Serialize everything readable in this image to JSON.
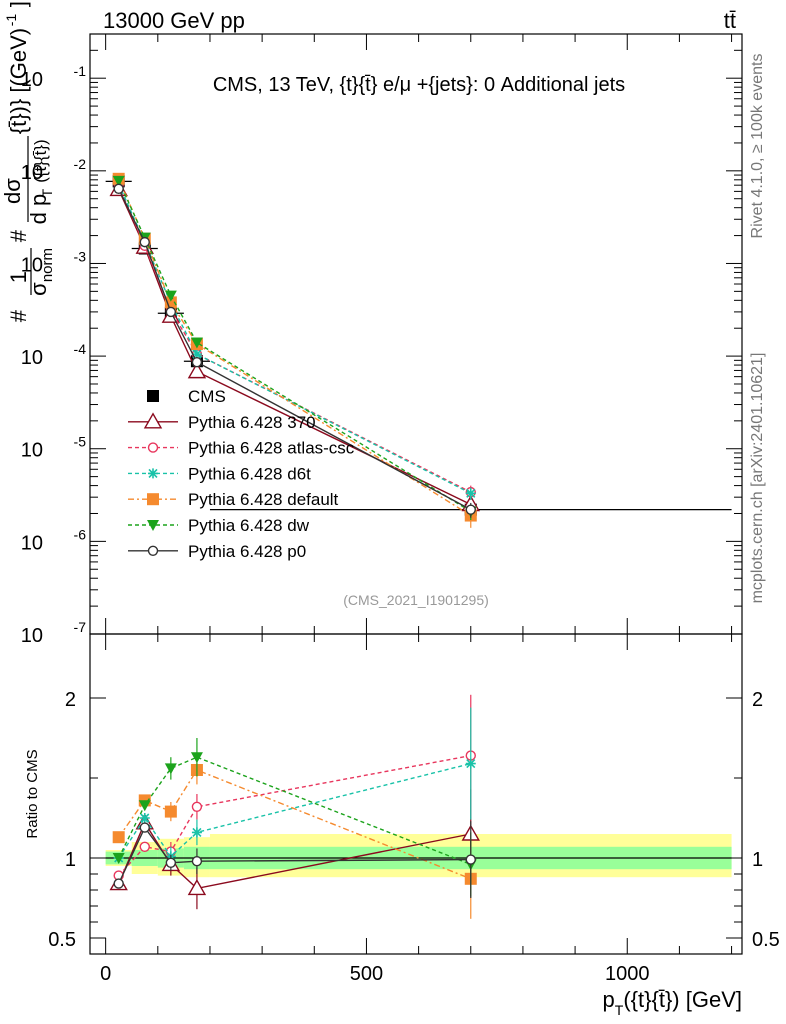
{
  "header": {
    "left": "13000 GeV pp",
    "right": "tt̄"
  },
  "side_labels": {
    "rivet": "Rivet 4.1.0, ≥ 100k events",
    "mcplots": "mcplots.cern.ch [arXiv:2401.10621]"
  },
  "chart_data": [
    {
      "type": "line",
      "panel": "main",
      "title": "CMS, 13 TeV, {t}{t̄} e/μ +{jets}: 0 Additional jets",
      "watermark": "(CMS_2021_I1901295)",
      "ylabel": "#1/σnorm #dσ/d pT({t}{t̄}) [(GeV)^-1]",
      "ylabel_parts": {
        "hash1": "#",
        "one": "1",
        "sigma": "σ",
        "norm": "norm",
        "hash2": "#",
        "dsigma": "dσ",
        "d": "d p",
        "T": "T",
        "arg": "({t}{t̄})",
        "close": "{t̄})} [(GeV)",
        "exp": "-1",
        "rp": "]"
      },
      "yscale": "log",
      "ylim": [
        1e-07,
        0.3
      ],
      "xlim": [
        -30,
        1220
      ],
      "y_ticks": [
        {
          "value": 0.1,
          "base": "10",
          "exp": "-1"
        },
        {
          "value": 0.01,
          "base": "10",
          "exp": "-2"
        },
        {
          "value": 0.001,
          "base": "10",
          "exp": "-3"
        },
        {
          "value": 0.0001,
          "base": "10",
          "exp": "-4"
        },
        {
          "value": 1e-05,
          "base": "10",
          "exp": "-5"
        },
        {
          "value": 1e-06,
          "base": "10",
          "exp": "-6"
        },
        {
          "value": 1e-07,
          "base": "10",
          "exp": "-7"
        }
      ],
      "x": [
        25,
        75,
        125,
        175,
        700
      ],
      "bins": [
        [
          0,
          50
        ],
        [
          50,
          100
        ],
        [
          100,
          150
        ],
        [
          150,
          200
        ],
        [
          200,
          1200
        ]
      ],
      "series": [
        {
          "name": "CMS",
          "color": "#000000",
          "marker": "square-filled",
          "dash": "",
          "values": [
            0.0077,
            0.00145,
            0.00029,
            8.8e-05,
            2.2e-06
          ],
          "errors": [
            0.0006,
            0.00012,
            3e-05,
            1.2e-05,
            3e-07
          ]
        },
        {
          "name": "Pythia 6.428 370",
          "color": "#8B0A1E",
          "marker": "triangle-open",
          "dash": "",
          "values": [
            0.0063,
            0.0015,
            0.00027,
            6.8e-05,
            2.5e-06
          ],
          "errors": [
            0.0002,
            5e-05,
            1e-05,
            8e-06,
            5e-07
          ]
        },
        {
          "name": "Pythia 6.428 atlas-csc",
          "color": "#E8365D",
          "marker": "circle-open",
          "dash": "4,3",
          "values": [
            0.007,
            0.00155,
            0.00031,
            0.000105,
            3.4e-06
          ],
          "errors": [
            0.0002,
            5e-05,
            1e-05,
            6e-06,
            6e-07
          ]
        },
        {
          "name": "Pythia 6.428 d6t",
          "color": "#19C2A8",
          "marker": "star",
          "dash": "4,3",
          "values": [
            0.0072,
            0.0017,
            0.00037,
            0.000105,
            3.3e-06
          ],
          "errors": [
            0.0002,
            5e-05,
            1e-05,
            6e-06,
            5e-07
          ]
        },
        {
          "name": "Pythia 6.428 default",
          "color": "#F58A2E",
          "marker": "square-filled",
          "dash": "6,3,2,3",
          "values": [
            0.0082,
            0.00185,
            0.00038,
            0.000135,
            1.9e-06
          ],
          "errors": [
            0.0002,
            5e-05,
            1e-05,
            6e-06,
            5e-07
          ]
        },
        {
          "name": "Pythia 6.428 dw",
          "color": "#1CA31C",
          "marker": "triangle-down-filled",
          "dash": "4,3",
          "values": [
            0.0078,
            0.0019,
            0.00045,
            0.00014,
            2.1e-06
          ],
          "errors": [
            0.0002,
            5e-05,
            1e-05,
            6e-06,
            4e-07
          ]
        },
        {
          "name": "Pythia 6.428 p0",
          "color": "#333333",
          "marker": "circle-open",
          "dash": "",
          "values": [
            0.0064,
            0.0017,
            0.0003,
            8.6e-05,
            2.2e-06
          ],
          "errors": [
            0.0002,
            5e-05,
            1e-05,
            6e-06,
            4e-07
          ]
        }
      ]
    },
    {
      "type": "line",
      "panel": "ratio",
      "ylabel": "Ratio to CMS",
      "xlabel": "pT({t}{t̄}) [GeV]",
      "xlabel_parts": {
        "p": "p",
        "T": "T",
        "arg": "({t}{t̄}) [GeV]"
      },
      "ylim": [
        0.4,
        2.4
      ],
      "y_ticks": [
        {
          "value": 0.5,
          "label": "0.5"
        },
        {
          "value": 1,
          "label": "1"
        },
        {
          "value": 2,
          "label": "2"
        }
      ],
      "x_ticks": [
        {
          "value": 0,
          "label": "0"
        },
        {
          "value": 500,
          "label": "500"
        },
        {
          "value": 1000,
          "label": "1000"
        }
      ],
      "band_inner": [
        [
          0,
          50,
          0.96,
          1.04
        ],
        [
          50,
          100,
          0.95,
          1.05
        ],
        [
          100,
          150,
          0.94,
          1.06
        ],
        [
          150,
          200,
          0.93,
          1.07
        ],
        [
          200,
          1200,
          0.93,
          1.07
        ]
      ],
      "band_outer": [
        [
          0,
          50,
          0.95,
          1.05
        ],
        [
          50,
          100,
          0.9,
          1.1
        ],
        [
          100,
          150,
          0.89,
          1.12
        ],
        [
          150,
          200,
          0.88,
          1.13
        ],
        [
          200,
          1200,
          0.88,
          1.15
        ]
      ],
      "x": [
        25,
        75,
        125,
        175,
        700
      ],
      "series": [
        {
          "name": "Pythia 6.428 370",
          "values": [
            0.84,
            1.22,
            0.96,
            0.81,
            1.15
          ],
          "errors": [
            0.02,
            0.03,
            0.07,
            0.13,
            0.28
          ]
        },
        {
          "name": "Pythia 6.428 atlas-csc",
          "values": [
            0.89,
            1.07,
            1.04,
            1.32,
            1.64
          ],
          "errors": [
            0.02,
            0.03,
            0.06,
            0.08,
            0.38
          ]
        },
        {
          "name": "Pythia 6.428 d6t",
          "values": [
            1.0,
            1.25,
            1.01,
            1.16,
            1.59
          ],
          "errors": [
            0.02,
            0.03,
            0.06,
            0.08,
            0.35
          ]
        },
        {
          "name": "Pythia 6.428 default",
          "values": [
            1.13,
            1.36,
            1.29,
            1.55,
            0.87
          ],
          "errors": [
            0.02,
            0.03,
            0.06,
            0.09,
            0.25
          ]
        },
        {
          "name": "Pythia 6.428 dw",
          "values": [
            1.0,
            1.33,
            1.56,
            1.63,
            0.96
          ],
          "errors": [
            0.02,
            0.03,
            0.07,
            0.12,
            0.2
          ]
        },
        {
          "name": "Pythia 6.428 p0",
          "values": [
            0.84,
            1.19,
            0.97,
            0.98,
            0.99
          ],
          "errors": [
            0.02,
            0.03,
            0.05,
            0.08,
            0.24
          ]
        }
      ]
    }
  ]
}
